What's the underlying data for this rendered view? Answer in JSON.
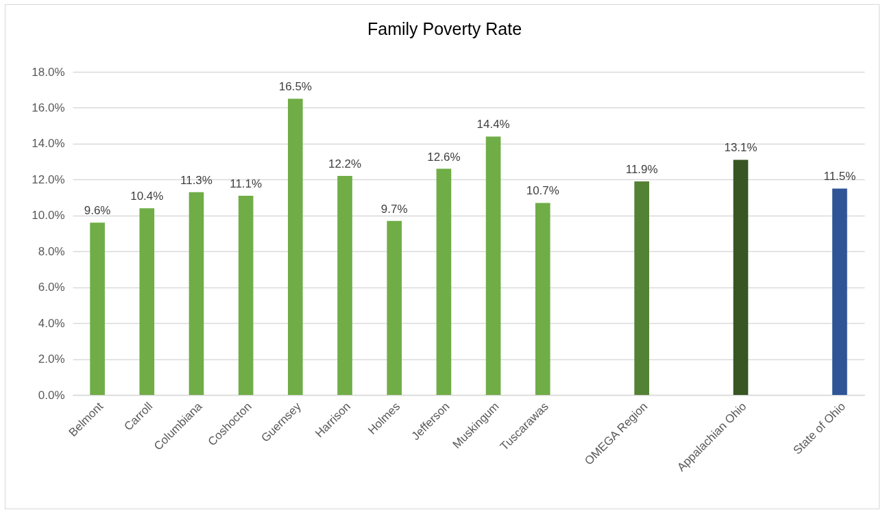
{
  "chart_data": {
    "type": "bar",
    "title": "Family Poverty Rate",
    "categories": [
      "Belmont",
      "Carroll",
      "Columbiana",
      "Coshocton",
      "Guernsey",
      "Harrison",
      "Holmes",
      "Jefferson",
      "Muskingum",
      "Tuscarawas",
      null,
      "OMEGA Region",
      null,
      "Appalachian Ohio",
      null,
      "State of Ohio"
    ],
    "values": [
      9.6,
      10.4,
      11.3,
      11.1,
      16.5,
      12.2,
      9.7,
      12.6,
      14.4,
      10.7,
      null,
      11.9,
      null,
      13.1,
      null,
      11.5
    ],
    "colors": [
      "#70ad47",
      "#70ad47",
      "#70ad47",
      "#70ad47",
      "#70ad47",
      "#70ad47",
      "#70ad47",
      "#70ad47",
      "#70ad47",
      "#70ad47",
      null,
      "#548235",
      null,
      "#375623",
      null,
      "#2f5597"
    ],
    "value_labels": [
      "9.6%",
      "10.4%",
      "11.3%",
      "11.1%",
      "16.5%",
      "12.2%",
      "9.7%",
      "12.6%",
      "14.4%",
      "10.7%",
      null,
      "11.9%",
      null,
      "13.1%",
      null,
      "11.5%"
    ],
    "ylim": [
      0,
      18
    ],
    "yticks": [
      {
        "value": 0,
        "label": "0.0%"
      },
      {
        "value": 2,
        "label": "2.0%"
      },
      {
        "value": 4,
        "label": "4.0%"
      },
      {
        "value": 6,
        "label": "6.0%"
      },
      {
        "value": 8,
        "label": "8.0%"
      },
      {
        "value": 10,
        "label": "10.0%"
      },
      {
        "value": 12,
        "label": "12.0%"
      },
      {
        "value": 14,
        "label": "14.0%"
      },
      {
        "value": 16,
        "label": "16.0%"
      },
      {
        "value": 18,
        "label": "18.0%"
      }
    ],
    "grid": "y"
  }
}
